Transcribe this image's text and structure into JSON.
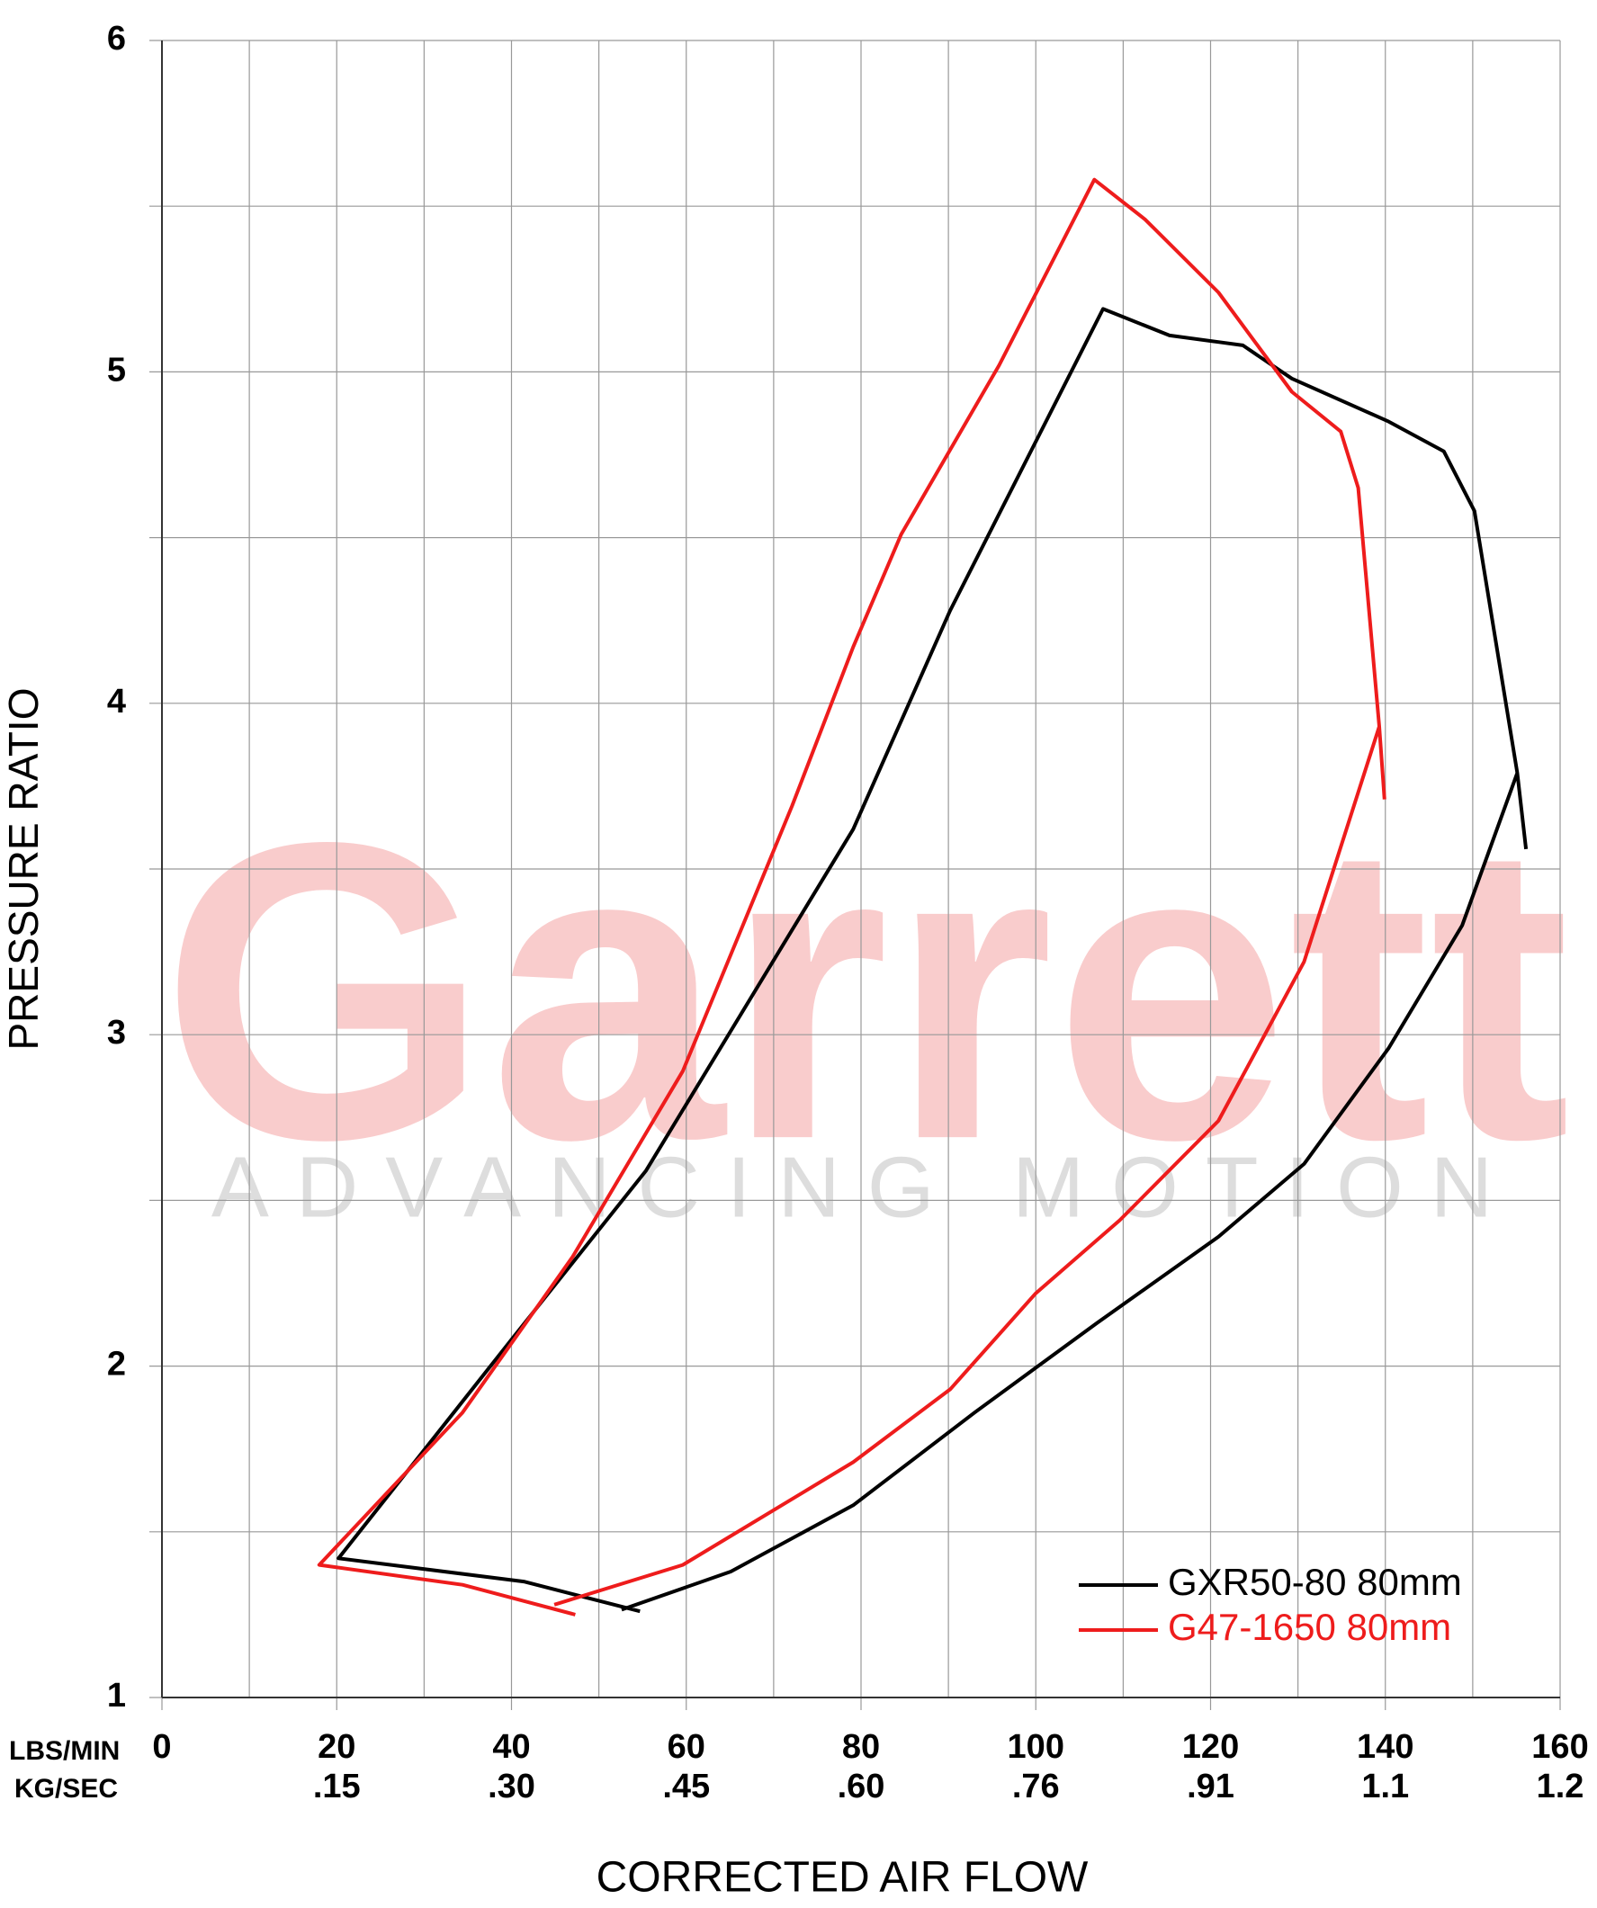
{
  "chart_data": {
    "type": "line",
    "title": "CORRECTED AIR FLOW",
    "ylabel": "PRESSURE RATIO",
    "x_unit_labels": [
      "LBS/MIN",
      "KG/SEC"
    ],
    "watermark": {
      "title": "Garrett",
      "subtitle": "ADVANCING MOTION"
    },
    "xlim": [
      0,
      160
    ],
    "ylim": [
      1,
      6
    ],
    "xticks": [
      0,
      20,
      40,
      60,
      80,
      100,
      120,
      140,
      160
    ],
    "xticks_kg": [
      null,
      ".15",
      ".30",
      ".45",
      ".60",
      ".76",
      ".91",
      "1.1",
      "1.2"
    ],
    "yticks": [
      1,
      2,
      3,
      4,
      5,
      6
    ],
    "xgrid_minor": [
      10,
      30,
      50,
      70,
      90,
      110,
      130,
      150
    ],
    "ygrid_minor": [
      1.5,
      2.5,
      3.5,
      4.5,
      5.5
    ],
    "grid": true,
    "legend": "lower right",
    "series": [
      {
        "name": "GXR50-80 80mm",
        "color": "#000000",
        "x": [
          156.1,
          155.1,
          150.2,
          146.7,
          140.4,
          129.3,
          123.7,
          120.9,
          115.3,
          107.7,
          90.2,
          79.1,
          55.4,
          40.0,
          20.2,
          41.4,
          54.7,
          null,
          52.6,
          65.1,
          79.1,
          93.0,
          107.0,
          120.9,
          130.7,
          140.4,
          148.8,
          155.1
        ],
        "values": [
          3.56,
          3.79,
          4.58,
          4.76,
          4.85,
          4.98,
          5.08,
          5.09,
          5.11,
          5.19,
          4.28,
          3.62,
          2.59,
          2.08,
          1.42,
          1.35,
          1.26,
          null,
          1.265,
          1.38,
          1.58,
          1.86,
          2.13,
          2.39,
          2.61,
          2.96,
          3.33,
          3.79
        ]
      },
      {
        "name": "G47-1650 80mm",
        "color": "#ee1c1c",
        "x": [
          139.9,
          139.3,
          136.9,
          134.9,
          129.3,
          120.9,
          112.5,
          106.7,
          95.8,
          84.6,
          79.1,
          72.1,
          59.6,
          47.0,
          34.4,
          18.0,
          34.4,
          47.3,
          null,
          44.9,
          59.6,
          79.1,
          90.2,
          100.0,
          109.6,
          120.9,
          130.7,
          139.3
        ],
        "values": [
          3.71,
          3.93,
          4.65,
          4.82,
          4.94,
          5.24,
          5.46,
          5.58,
          5.02,
          4.51,
          4.17,
          3.69,
          2.89,
          2.33,
          1.86,
          1.4,
          1.34,
          1.25,
          null,
          1.28,
          1.4,
          1.71,
          1.93,
          2.22,
          2.44,
          2.74,
          3.22,
          3.93
        ]
      }
    ]
  }
}
